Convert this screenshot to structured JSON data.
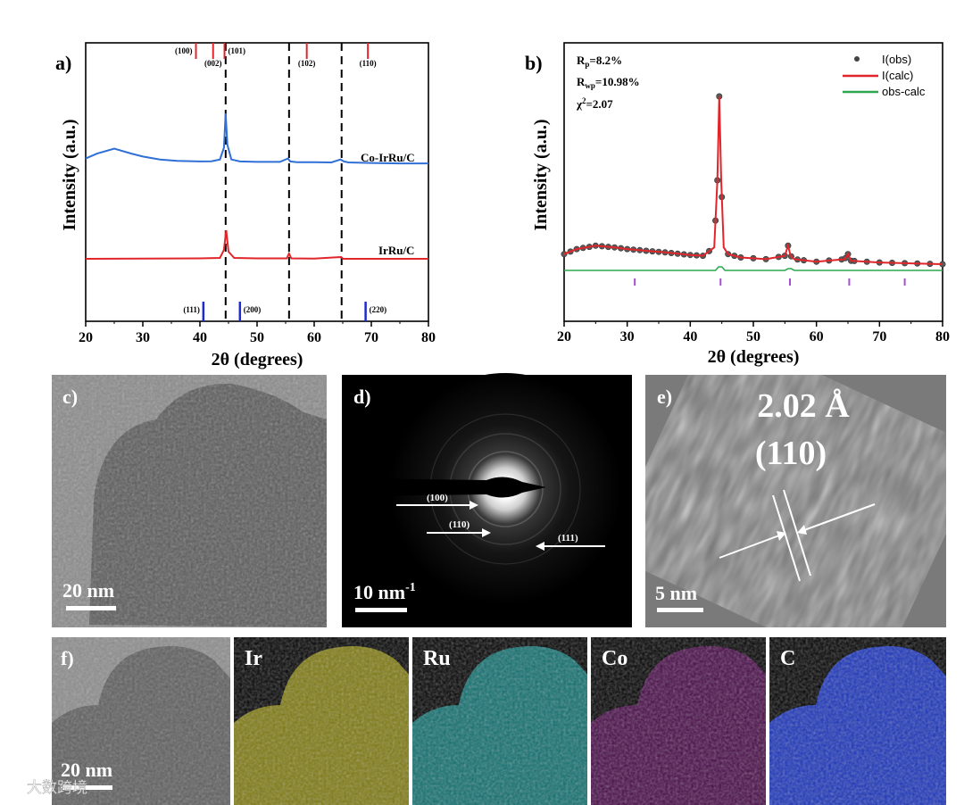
{
  "watermark": "大数跨境",
  "chart_data": [
    {
      "panel": "a)",
      "type": "line",
      "xlabel": "2θ (degrees)",
      "ylabel": "Intensity (a.u.)",
      "xlim": [
        20,
        80
      ],
      "xticks": [
        "20",
        "30",
        "40",
        "50",
        "60",
        "70",
        "80"
      ],
      "series": [
        {
          "name": "Co-IrRu/C",
          "color": "#2f6fd6",
          "x": [
            20,
            22,
            25,
            28,
            30,
            33,
            36,
            40,
            42,
            43.5,
            44.2,
            44.5,
            44.8,
            45.5,
            47,
            50,
            54,
            55.4,
            55.8,
            57,
            60,
            63,
            64.6,
            65.2,
            66,
            70,
            75,
            80
          ],
          "y": [
            0.04,
            0.09,
            0.14,
            0.09,
            0.06,
            0.03,
            0.015,
            0.01,
            0.012,
            0.03,
            0.15,
            0.5,
            0.18,
            0.03,
            0.01,
            0.005,
            0.005,
            0.04,
            0.01,
            0.003,
            0.002,
            0.0,
            0.03,
            0.01,
            0.0,
            -0.005,
            -0.01,
            -0.01
          ]
        },
        {
          "name": "IrRu/C",
          "color": "#e0262b",
          "x": [
            20,
            30,
            40,
            43.5,
            44.2,
            44.6,
            45.0,
            46,
            50,
            55.2,
            55.6,
            56,
            60,
            64.7,
            65.1,
            70,
            80
          ],
          "y": [
            0,
            0.003,
            0.005,
            0.01,
            0.1,
            0.32,
            0.08,
            0.01,
            0.005,
            0.005,
            0.06,
            0.005,
            0.002,
            0.02,
            0.0,
            0.0,
            0.0
          ]
        }
      ],
      "dashed_lines_x": [
        44.5,
        55.6,
        64.8
      ],
      "top_ref": {
        "color": "#e0262b",
        "peaks": [
          {
            "x": 39.3,
            "label": "(100)"
          },
          {
            "x": 42.3,
            "label": "(002)"
          },
          {
            "x": 44.3,
            "label": "(101)"
          },
          {
            "x": 58.7,
            "label": "(102)"
          },
          {
            "x": 69.4,
            "label": "(110)"
          }
        ]
      },
      "bottom_ref": {
        "color": "#1f2bd0",
        "peaks": [
          {
            "x": 40.6,
            "label": "(111)"
          },
          {
            "x": 47.0,
            "label": "(200)"
          },
          {
            "x": 69.0,
            "label": "(220)"
          }
        ]
      }
    },
    {
      "panel": "b)",
      "type": "line",
      "xlabel": "2θ (degrees)",
      "ylabel": "Intensity (a.u.)",
      "xlim": [
        20,
        80
      ],
      "xticks": [
        "20",
        "30",
        "40",
        "50",
        "60",
        "70",
        "80"
      ],
      "stats": {
        "rp": "=8.2%",
        "rwp": "=10.98%",
        "chi": "=2.07"
      },
      "legend": [
        "I(obs)",
        "I(calc)",
        "obs-calc"
      ],
      "legend_position": "top-right",
      "calc": {
        "color": "#e0262b",
        "x": [
          20,
          22,
          25,
          28,
          30,
          33,
          36,
          40,
          42,
          43.8,
          44.3,
          44.6,
          44.9,
          45.3,
          46,
          48,
          52,
          55,
          55.5,
          55.9,
          56.5,
          60,
          64.5,
          65,
          65.5,
          70,
          75,
          80
        ],
        "y": [
          0.06,
          0.09,
          0.11,
          0.1,
          0.09,
          0.08,
          0.07,
          0.055,
          0.05,
          0.1,
          0.5,
          1.0,
          0.5,
          0.1,
          0.06,
          0.04,
          0.03,
          0.05,
          0.11,
          0.05,
          0.03,
          0.015,
          0.03,
          0.06,
          0.02,
          0.01,
          0.005,
          0.0
        ]
      },
      "obs_x": [
        20,
        21,
        22,
        23,
        24,
        25,
        26,
        27,
        28,
        29,
        30,
        31,
        32,
        33,
        34,
        35,
        36,
        37,
        38,
        39,
        40,
        41,
        42,
        43,
        44,
        44.3,
        44.6,
        45,
        46,
        47,
        48,
        50,
        52,
        54,
        55,
        55.5,
        56,
        57,
        58,
        60,
        62,
        64,
        64.6,
        65,
        65.5,
        66,
        68,
        70,
        72,
        74,
        76,
        78,
        80
      ],
      "diff": {
        "color": "#2ca84e"
      },
      "ticks": {
        "color": "#a64fd6",
        "x": [
          31.2,
          44.8,
          55.8,
          65.2,
          74.0
        ]
      }
    }
  ],
  "panels": {
    "c": {
      "label": "c)",
      "scale": "20 nm"
    },
    "d": {
      "label": "d)",
      "scale": "10 nm",
      "scale_sup": "-1",
      "rings": [
        {
          "label": "(100)"
        },
        {
          "label": "(110)"
        },
        {
          "label": "(111)"
        }
      ]
    },
    "e": {
      "label": "e)",
      "d_spacing": "2.02 Å",
      "plane": "(110)",
      "scale": "5 nm"
    },
    "f": {
      "label": "f)",
      "scale": "20 nm",
      "maps": [
        {
          "element": "Ir",
          "color": "#e6dc1e"
        },
        {
          "element": "Ru",
          "color": "#1ec8c8"
        },
        {
          "element": "Co",
          "color": "#c81ec8"
        },
        {
          "element": "C",
          "color": "#1e3cdc"
        }
      ]
    }
  }
}
